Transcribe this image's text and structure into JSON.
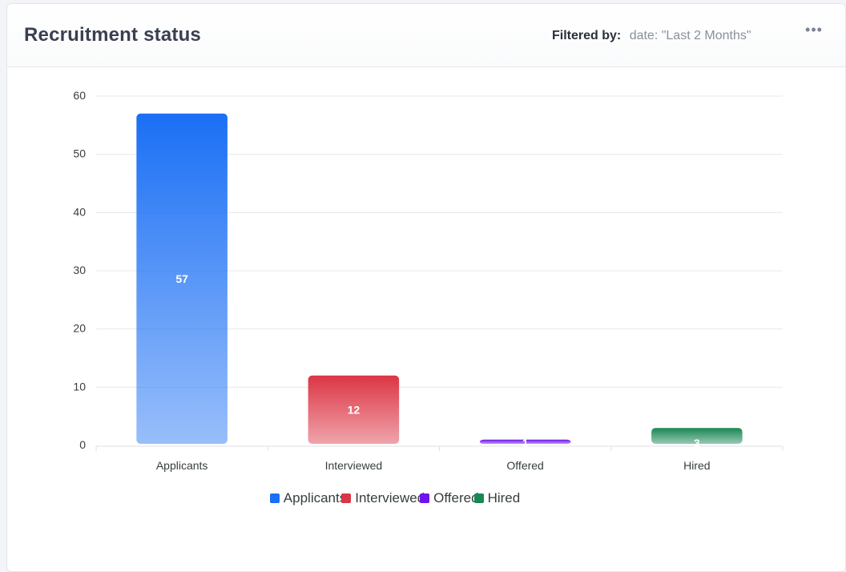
{
  "card": {
    "title": "Recruitment status",
    "filter_label": "Filtered by:",
    "filter_value": "date: \"Last 2 Months\"",
    "more_icon": "more-horizontal-icon"
  },
  "chart_data": {
    "type": "bar",
    "title": "Recruitment status",
    "xlabel": "",
    "ylabel": "",
    "categories": [
      "Applicants",
      "Interviewed",
      "Offered",
      "Hired"
    ],
    "values": [
      57,
      12,
      1,
      3
    ],
    "colors": [
      "#1a6ff5",
      "#dc3545",
      "#6f13f0",
      "#198754"
    ],
    "ylim": [
      0,
      60
    ],
    "yticks": [
      0,
      10,
      20,
      30,
      40,
      50,
      60
    ],
    "grid": true,
    "data_labels": true,
    "legend": [
      "Applicants",
      "Interviewed",
      "Offered",
      "Hired"
    ],
    "legend_position": "bottom"
  }
}
